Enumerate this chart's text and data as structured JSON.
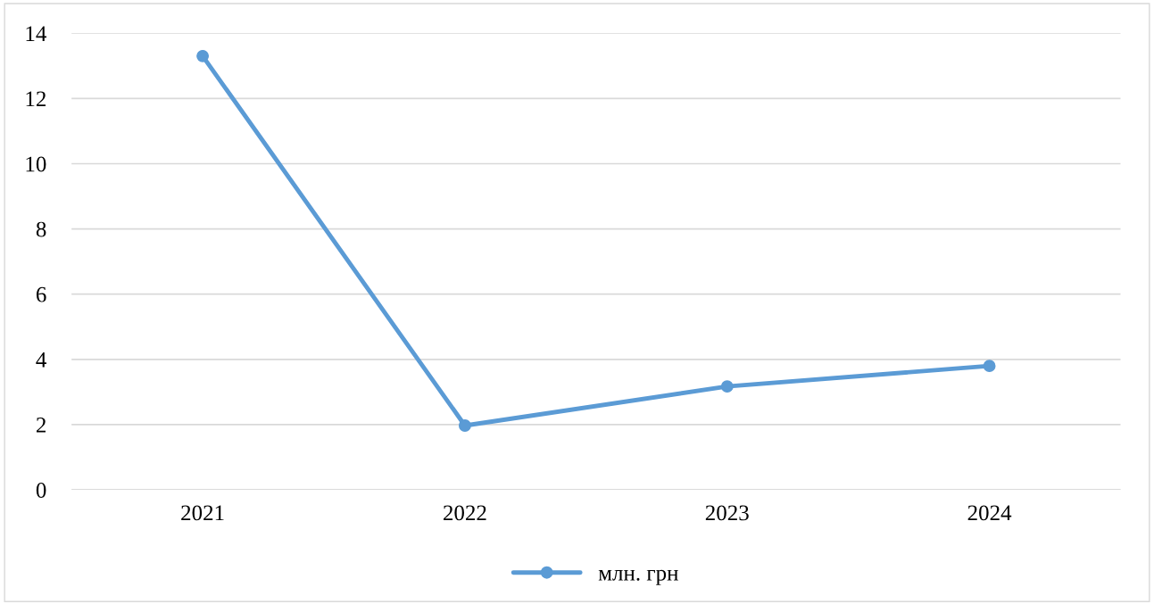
{
  "chart_data": {
    "type": "line",
    "categories": [
      "2021",
      "2022",
      "2023",
      "2024"
    ],
    "series": [
      {
        "name": "млн. грн",
        "color": "#5b9bd5",
        "values": [
          13.3,
          1.97,
          3.17,
          3.8
        ]
      }
    ],
    "ylim": [
      0,
      14
    ],
    "yticks": [
      0,
      2,
      4,
      6,
      8,
      10,
      12,
      14
    ],
    "grid": "y",
    "legend": "bottom",
    "marker": "circle",
    "line_style": "solid"
  }
}
